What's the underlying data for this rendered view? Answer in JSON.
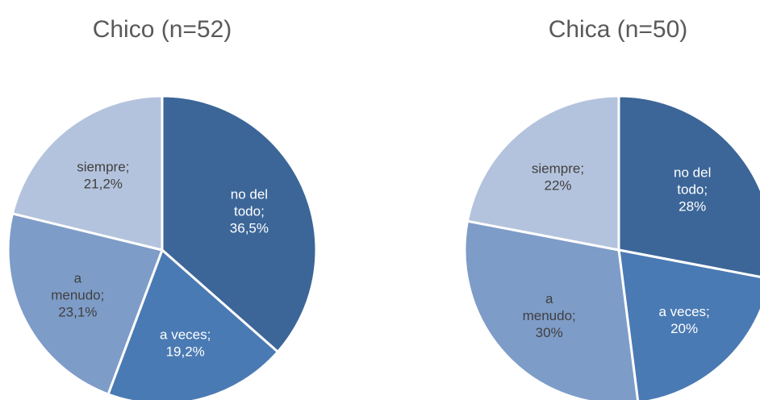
{
  "chart_data": [
    {
      "type": "pie",
      "title": "Chico (n=52)",
      "slices": [
        {
          "category": "no del todo",
          "value": 36.5,
          "value_label": "36,5%",
          "color": "#3c6698",
          "label_color": "#ffffff"
        },
        {
          "category": "a veces",
          "value": 19.2,
          "value_label": "19,2%",
          "color": "#4a7ab3",
          "label_color": "#ffffff"
        },
        {
          "category": "a menudo",
          "value": 23.1,
          "value_label": "23,1%",
          "color": "#7e9cc8",
          "label_color": "#404040"
        },
        {
          "category": "siempre",
          "value": 21.2,
          "value_label": "21,2%",
          "color": "#b4c3dd",
          "label_color": "#404040"
        }
      ]
    },
    {
      "type": "pie",
      "title": "Chica (n=50)",
      "slices": [
        {
          "category": "no del todo",
          "value": 28,
          "value_label": "28%",
          "color": "#3c6698",
          "label_color": "#ffffff"
        },
        {
          "category": "a veces",
          "value": 20,
          "value_label": "20%",
          "color": "#4a7ab3",
          "label_color": "#ffffff"
        },
        {
          "category": "a menudo",
          "value": 30,
          "value_label": "30%",
          "color": "#7e9cc8",
          "label_color": "#404040"
        },
        {
          "category": "siempre",
          "value": 22,
          "value_label": "22%",
          "color": "#b4c3dd",
          "label_color": "#404040"
        }
      ]
    }
  ]
}
